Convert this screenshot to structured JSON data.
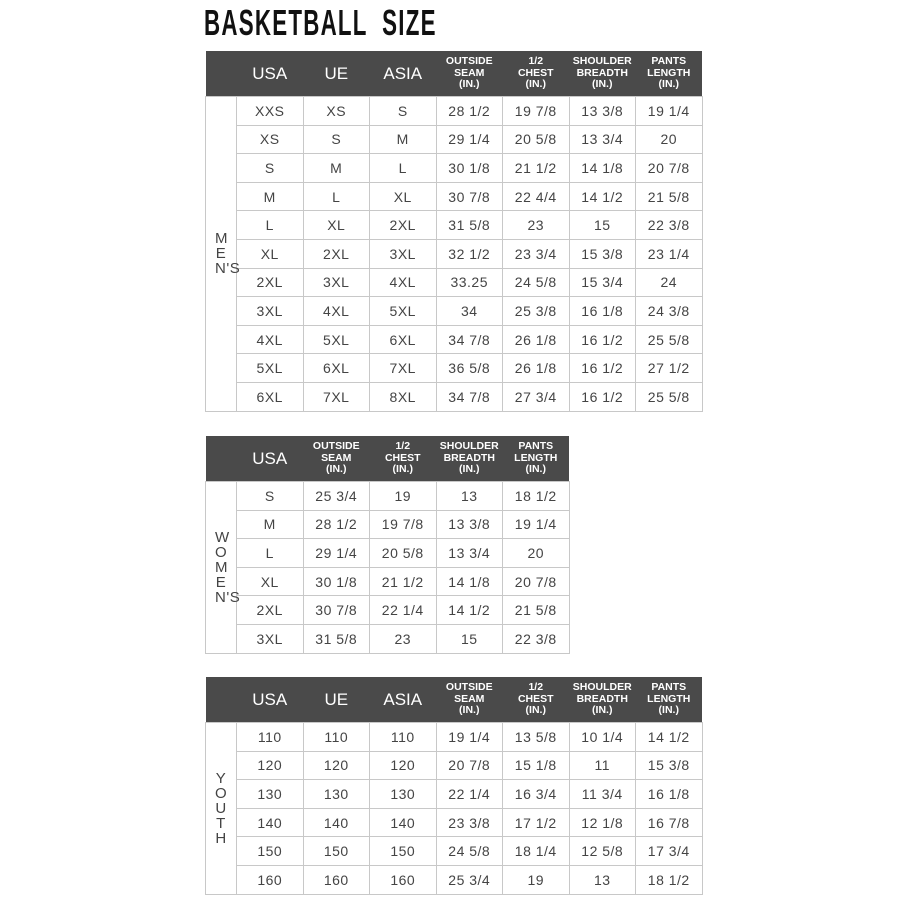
{
  "title": "BASKETBALL  SIZE",
  "colors": {
    "header_bg": "#4a4a4a",
    "header_text": "#ffffff",
    "grid": "#c8c8c8"
  },
  "tables": {
    "men": {
      "side_label": "MEN'S",
      "headers": [
        [
          "USA"
        ],
        [
          "UE"
        ],
        [
          "ASIA"
        ],
        [
          "OUTSIDE",
          "SEAM",
          "(IN.)"
        ],
        [
          "1/2",
          "CHEST",
          "(IN.)"
        ],
        [
          "SHOULDER",
          "BREADTH",
          "(IN.)"
        ],
        [
          "PANTS",
          "LENGTH",
          "(IN.)"
        ]
      ],
      "rows": [
        [
          "XXS",
          "XS",
          "S",
          "28 1/2",
          "19 7/8",
          "13 3/8",
          "19 1/4"
        ],
        [
          "XS",
          "S",
          "M",
          "29 1/4",
          "20 5/8",
          "13 3/4",
          "20"
        ],
        [
          "S",
          "M",
          "L",
          "30 1/8",
          "21 1/2",
          "14 1/8",
          "20 7/8"
        ],
        [
          "M",
          "L",
          "XL",
          "30 7/8",
          "22 4/4",
          "14 1/2",
          "21 5/8"
        ],
        [
          "L",
          "XL",
          "2XL",
          "31 5/8",
          "23",
          "15",
          "22 3/8"
        ],
        [
          "XL",
          "2XL",
          "3XL",
          "32 1/2",
          "23 3/4",
          "15 3/8",
          "23 1/4"
        ],
        [
          "2XL",
          "3XL",
          "4XL",
          "33.25",
          "24 5/8",
          "15 3/4",
          "24"
        ],
        [
          "3XL",
          "4XL",
          "5XL",
          "34",
          "25 3/8",
          "16 1/8",
          "24 3/8"
        ],
        [
          "4XL",
          "5XL",
          "6XL",
          "34 7/8",
          "26 1/8",
          "16 1/2",
          "25 5/8"
        ],
        [
          "5XL",
          "6XL",
          "7XL",
          "36 5/8",
          "26 1/8",
          "16 1/2",
          "27 1/2"
        ],
        [
          "6XL",
          "7XL",
          "8XL",
          "34 7/8",
          "27 3/4",
          "16 1/2",
          "25 5/8"
        ]
      ]
    },
    "women": {
      "side_label": "WOMEN'S",
      "headers": [
        [
          "USA"
        ],
        [
          "OUTSIDE",
          "SEAM",
          "(IN.)"
        ],
        [
          "1/2",
          "CHEST",
          "(IN.)"
        ],
        [
          "SHOULDER",
          "BREADTH",
          "(IN.)"
        ],
        [
          "PANTS",
          "LENGTH",
          "(IN.)"
        ]
      ],
      "rows": [
        [
          "S",
          "25 3/4",
          "19",
          "13",
          "18 1/2"
        ],
        [
          "M",
          "28 1/2",
          "19 7/8",
          "13 3/8",
          "19 1/4"
        ],
        [
          "L",
          "29 1/4",
          "20 5/8",
          "13 3/4",
          "20"
        ],
        [
          "XL",
          "30 1/8",
          "21 1/2",
          "14 1/8",
          "20 7/8"
        ],
        [
          "2XL",
          "30 7/8",
          "22 1/4",
          "14 1/2",
          "21 5/8"
        ],
        [
          "3XL",
          "31 5/8",
          "23",
          "15",
          "22 3/8"
        ]
      ]
    },
    "youth": {
      "side_label": "YOUTH",
      "headers": [
        [
          "USA"
        ],
        [
          "UE"
        ],
        [
          "ASIA"
        ],
        [
          "OUTSIDE",
          "SEAM",
          "(IN.)"
        ],
        [
          "1/2",
          "CHEST",
          "(IN.)"
        ],
        [
          "SHOULDER",
          "BREADTH",
          "(IN.)"
        ],
        [
          "PANTS",
          "LENGTH",
          "(IN.)"
        ]
      ],
      "rows": [
        [
          "110",
          "110",
          "110",
          "19 1/4",
          "13 5/8",
          "10 1/4",
          "14 1/2"
        ],
        [
          "120",
          "120",
          "120",
          "20 7/8",
          "15 1/8",
          "11",
          "15 3/8"
        ],
        [
          "130",
          "130",
          "130",
          "22 1/4",
          "16 3/4",
          "11 3/4",
          "16 1/8"
        ],
        [
          "140",
          "140",
          "140",
          "23 3/8",
          "17 1/2",
          "12 1/8",
          "16 7/8"
        ],
        [
          "150",
          "150",
          "150",
          "24 5/8",
          "18 1/4",
          "12 5/8",
          "17 3/4"
        ],
        [
          "160",
          "160",
          "160",
          "25 3/4",
          "19",
          "13",
          "18 1/2"
        ]
      ]
    }
  }
}
